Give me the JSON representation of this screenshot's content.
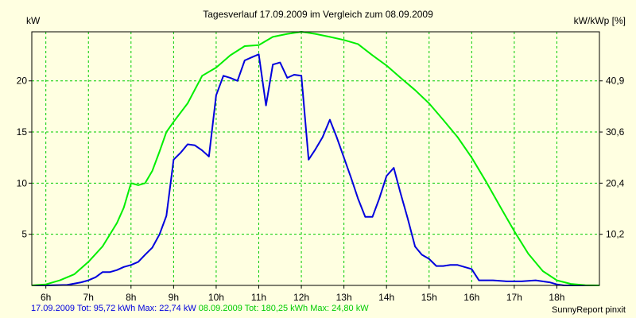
{
  "chart_data": {
    "type": "line",
    "title": "Tagesverlauf 17.09.2009 im Vergleich zum 08.09.2009",
    "ylabel_left": "kW",
    "ylabel_right": "kW/kWp [%]",
    "xlim": [
      5.67,
      19.0
    ],
    "ylim": [
      0,
      24.8
    ],
    "x_ticks": [
      {
        "x": 6,
        "label": "6h"
      },
      {
        "x": 7,
        "label": "7h"
      },
      {
        "x": 8,
        "label": "8h"
      },
      {
        "x": 9,
        "label": "9h"
      },
      {
        "x": 10,
        "label": "10h"
      },
      {
        "x": 11,
        "label": "11h"
      },
      {
        "x": 12,
        "label": "12h"
      },
      {
        "x": 13,
        "label": "13h"
      },
      {
        "x": 14,
        "label": "14h"
      },
      {
        "x": 15,
        "label": "15h"
      },
      {
        "x": 16,
        "label": "16h"
      },
      {
        "x": 17,
        "label": "17h"
      },
      {
        "x": 18,
        "label": "18h"
      }
    ],
    "y_left_ticks": [
      {
        "v": 5,
        "label": "5"
      },
      {
        "v": 10,
        "label": "10"
      },
      {
        "v": 15,
        "label": "15"
      },
      {
        "v": 20,
        "label": "20"
      }
    ],
    "y_right_ticks": [
      {
        "v": 5.0,
        "label": "10,2"
      },
      {
        "v": 10.0,
        "label": "20,4"
      },
      {
        "v": 15.0,
        "label": "30,6"
      },
      {
        "v": 20.0,
        "label": "40,9"
      }
    ],
    "grid": true,
    "series": [
      {
        "name": "17.09.2009",
        "color": "#0000dd",
        "points": [
          [
            5.67,
            0
          ],
          [
            6.0,
            0
          ],
          [
            6.5,
            0.05
          ],
          [
            6.83,
            0.3
          ],
          [
            7.0,
            0.5
          ],
          [
            7.17,
            0.8
          ],
          [
            7.33,
            1.3
          ],
          [
            7.5,
            1.3
          ],
          [
            7.67,
            1.5
          ],
          [
            7.83,
            1.8
          ],
          [
            8.0,
            2.0
          ],
          [
            8.17,
            2.3
          ],
          [
            8.33,
            3.0
          ],
          [
            8.5,
            3.7
          ],
          [
            8.67,
            5.0
          ],
          [
            8.83,
            6.8
          ],
          [
            9.0,
            12.3
          ],
          [
            9.17,
            13.0
          ],
          [
            9.33,
            13.8
          ],
          [
            9.5,
            13.7
          ],
          [
            9.67,
            13.2
          ],
          [
            9.83,
            12.6
          ],
          [
            10.0,
            18.6
          ],
          [
            10.17,
            20.5
          ],
          [
            10.33,
            20.3
          ],
          [
            10.5,
            20.0
          ],
          [
            10.67,
            22.0
          ],
          [
            10.83,
            22.3
          ],
          [
            11.0,
            22.6
          ],
          [
            11.17,
            17.6
          ],
          [
            11.33,
            21.6
          ],
          [
            11.5,
            21.8
          ],
          [
            11.67,
            20.3
          ],
          [
            11.83,
            20.6
          ],
          [
            12.0,
            20.5
          ],
          [
            12.17,
            12.3
          ],
          [
            12.33,
            13.3
          ],
          [
            12.5,
            14.5
          ],
          [
            12.67,
            16.2
          ],
          [
            12.83,
            14.5
          ],
          [
            13.0,
            12.5
          ],
          [
            13.17,
            10.5
          ],
          [
            13.33,
            8.5
          ],
          [
            13.5,
            6.7
          ],
          [
            13.67,
            6.7
          ],
          [
            13.83,
            8.5
          ],
          [
            14.0,
            10.7
          ],
          [
            14.17,
            11.5
          ],
          [
            14.33,
            9.0
          ],
          [
            14.5,
            6.5
          ],
          [
            14.67,
            3.8
          ],
          [
            14.83,
            3.0
          ],
          [
            15.0,
            2.6
          ],
          [
            15.17,
            1.9
          ],
          [
            15.33,
            1.9
          ],
          [
            15.5,
            2.0
          ],
          [
            15.67,
            2.0
          ],
          [
            15.83,
            1.8
          ],
          [
            16.0,
            1.6
          ],
          [
            16.17,
            0.5
          ],
          [
            16.5,
            0.5
          ],
          [
            16.83,
            0.4
          ],
          [
            17.17,
            0.4
          ],
          [
            17.5,
            0.5
          ],
          [
            17.83,
            0.3
          ],
          [
            18.0,
            0.1
          ],
          [
            18.17,
            0.0
          ],
          [
            19.0,
            0.0
          ]
        ]
      },
      {
        "name": "08.09.2009",
        "color": "#00ee00",
        "points": [
          [
            5.67,
            0
          ],
          [
            6.0,
            0.1
          ],
          [
            6.33,
            0.5
          ],
          [
            6.67,
            1.1
          ],
          [
            7.0,
            2.3
          ],
          [
            7.33,
            3.8
          ],
          [
            7.67,
            6.1
          ],
          [
            7.83,
            7.6
          ],
          [
            8.0,
            10.0
          ],
          [
            8.17,
            9.8
          ],
          [
            8.33,
            10.0
          ],
          [
            8.5,
            11.2
          ],
          [
            8.67,
            13.1
          ],
          [
            8.83,
            15.0
          ],
          [
            9.0,
            16.0
          ],
          [
            9.33,
            17.8
          ],
          [
            9.67,
            20.5
          ],
          [
            10.0,
            21.3
          ],
          [
            10.33,
            22.5
          ],
          [
            10.67,
            23.4
          ],
          [
            11.0,
            23.5
          ],
          [
            11.33,
            24.3
          ],
          [
            11.67,
            24.6
          ],
          [
            12.0,
            24.8
          ],
          [
            12.33,
            24.6
          ],
          [
            12.67,
            24.3
          ],
          [
            13.0,
            24.0
          ],
          [
            13.33,
            23.6
          ],
          [
            13.67,
            22.5
          ],
          [
            14.0,
            21.5
          ],
          [
            14.33,
            20.3
          ],
          [
            14.67,
            19.1
          ],
          [
            15.0,
            17.8
          ],
          [
            15.33,
            16.2
          ],
          [
            15.67,
            14.5
          ],
          [
            16.0,
            12.5
          ],
          [
            16.33,
            10.2
          ],
          [
            16.67,
            7.7
          ],
          [
            17.0,
            5.3
          ],
          [
            17.33,
            3.1
          ],
          [
            17.67,
            1.4
          ],
          [
            18.0,
            0.5
          ],
          [
            18.33,
            0.15
          ],
          [
            18.67,
            0.02
          ],
          [
            19.0,
            0
          ]
        ]
      }
    ]
  },
  "footer": {
    "blue_text": "17.09.2009 Tot: 95,72 kWh Max: 22,74 kW",
    "green_text": "08.09.2009 Tot: 180,25 kWh Max: 24,80 kW",
    "credit": "SunnyReport pinxit"
  }
}
